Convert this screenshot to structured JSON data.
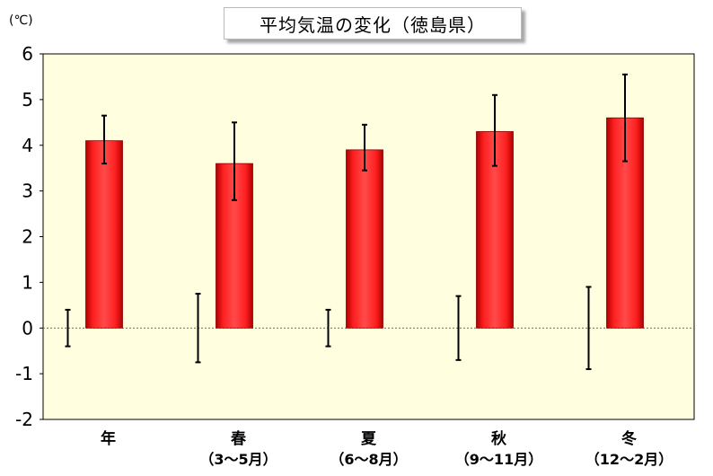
{
  "unit": "(℃)",
  "chart_data": {
    "type": "bar",
    "title": "平均気温の変化（徳島県）",
    "categories": [
      {
        "name": "年",
        "period": ""
      },
      {
        "name": "春",
        "period": "（3〜5月）"
      },
      {
        "name": "夏",
        "period": "（6〜8月）"
      },
      {
        "name": "秋",
        "period": "（9〜11月）"
      },
      {
        "name": "冬",
        "period": "（12〜2月）"
      }
    ],
    "values": [
      4.1,
      3.6,
      3.9,
      4.3,
      4.6
    ],
    "error_high": [
      4.65,
      4.5,
      4.45,
      5.1,
      5.55
    ],
    "error_low": [
      3.6,
      2.8,
      3.45,
      3.55,
      3.65
    ],
    "baseline_error_high": [
      0.4,
      0.75,
      0.4,
      0.7,
      0.9
    ],
    "baseline_error_low": [
      -0.4,
      -0.75,
      -0.4,
      -0.7,
      -0.9
    ],
    "yticks": [
      6,
      5,
      4,
      3,
      2,
      1,
      0,
      -1,
      -2
    ],
    "ylim": [
      -2,
      6
    ],
    "colors": {
      "bar": "#ff1a1a",
      "plot_bg": "#ffffe0"
    }
  }
}
